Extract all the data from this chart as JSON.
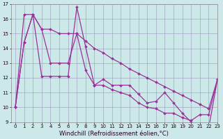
{
  "xlabel": "Windchill (Refroidissement éolien,°C)",
  "x": [
    0,
    1,
    2,
    3,
    4,
    5,
    6,
    7,
    8,
    9,
    10,
    11,
    12,
    13,
    14,
    15,
    16,
    17,
    18,
    19,
    20,
    21,
    22,
    23
  ],
  "line_upper": [
    10.0,
    16.3,
    16.3,
    15.3,
    15.3,
    15.0,
    15.0,
    15.0,
    14.5,
    14.0,
    13.7,
    13.3,
    13.0,
    12.6,
    12.3,
    12.0,
    11.7,
    11.4,
    11.1,
    10.8,
    10.5,
    10.2,
    9.9,
    11.9
  ],
  "line_lower": [
    10.0,
    14.4,
    16.3,
    15.3,
    13.0,
    13.0,
    13.0,
    15.0,
    12.5,
    11.5,
    11.5,
    11.2,
    11.0,
    10.8,
    10.3,
    10.0,
    9.9,
    9.6,
    9.6,
    9.3,
    9.1,
    9.5,
    9.5,
    11.9
  ],
  "line_zigzag": [
    10.0,
    14.4,
    16.3,
    12.1,
    12.1,
    12.1,
    12.1,
    16.8,
    14.1,
    11.5,
    11.9,
    11.5,
    11.5,
    11.5,
    10.9,
    10.3,
    10.4,
    11.0,
    10.3,
    9.6,
    9.0,
    8.6,
    8.6,
    11.9
  ],
  "ylim": [
    9,
    17
  ],
  "xlim": [
    -0.5,
    23
  ],
  "yticks": [
    9,
    10,
    11,
    12,
    13,
    14,
    15,
    16,
    17
  ],
  "xticks": [
    0,
    1,
    2,
    3,
    4,
    5,
    6,
    7,
    8,
    9,
    10,
    11,
    12,
    13,
    14,
    15,
    16,
    17,
    18,
    19,
    20,
    21,
    22,
    23
  ],
  "line_color": "#993399",
  "bg_color": "#cce8e8",
  "grid_color": "#9999bb",
  "marker": "D",
  "marker_size": 2.0,
  "line_width": 0.9,
  "tick_fontsize": 5.0,
  "xlabel_fontsize": 6.0
}
